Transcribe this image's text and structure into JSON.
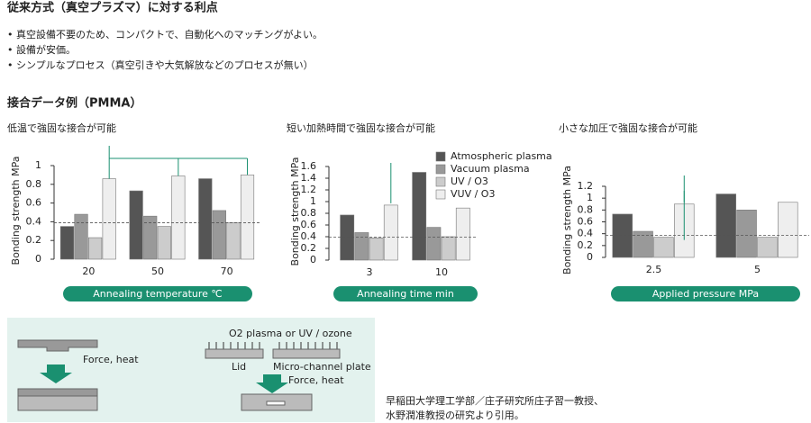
{
  "header": {
    "title": "従来方式（真空プラズマ）に対する利点"
  },
  "bullets": [
    "真空設備不要のため、コンパクトで、自動化へのマッチングがよい。",
    "設備が安価。",
    "シンプルなプロセス（真空引きや大気解放などのプロセスが無い）"
  ],
  "section_title": "接合データ例（PMMA）",
  "chart_data": [
    {
      "type": "bar",
      "title": "低温で強固な接合が可能",
      "y_label": "Bonding strength MPa",
      "x_label": "Annealing temperature ℃",
      "categories": [
        "20",
        "50",
        "70"
      ],
      "series": [
        {
          "name": "Atmospheric plasma",
          "color": "#555555",
          "values": [
            0.35,
            0.73,
            0.86
          ]
        },
        {
          "name": "Vacuum plasma",
          "color": "#999999",
          "values": [
            0.48,
            0.46,
            0.52
          ]
        },
        {
          "name": "UV / O3",
          "color": "#cccccc",
          "values": [
            0.23,
            0.35,
            0.39
          ]
        },
        {
          "name": "VUV / O3",
          "color": "#eeeeee",
          "values": [
            0.86,
            0.89,
            0.9
          ]
        }
      ],
      "ylim": [
        0,
        1
      ],
      "yticks": [
        0,
        0.2,
        0.4,
        0.6,
        0.8,
        1
      ],
      "reference_line": 0.39
    },
    {
      "type": "bar",
      "title": "短い加熱時間で強固な接合が可能",
      "y_label": "Bonding strength MPa",
      "x_label": "Annealing time min",
      "categories": [
        "3",
        "10"
      ],
      "series": [
        {
          "name": "Atmospheric plasma",
          "color": "#555555",
          "values": [
            0.77,
            1.5
          ]
        },
        {
          "name": "Vacuum plasma",
          "color": "#999999",
          "values": [
            0.47,
            0.56
          ]
        },
        {
          "name": "UV / O3",
          "color": "#cccccc",
          "values": [
            0.38,
            0.4
          ]
        },
        {
          "name": "VUV / O3",
          "color": "#eeeeee",
          "values": [
            0.94,
            0.89
          ]
        }
      ],
      "ylim": [
        0,
        1.6
      ],
      "yticks": [
        0,
        0.2,
        0.4,
        0.6,
        0.8,
        1,
        1.2,
        1.4,
        1.6
      ],
      "reference_line": 0.39,
      "legend": "upper right"
    },
    {
      "type": "bar",
      "title": "小さな加圧で強固な接合が可能",
      "y_label": "Bonding strength MPa",
      "x_label": "Applied pressure MPa",
      "categories": [
        "2.5",
        "5"
      ],
      "series": [
        {
          "name": "Atmospheric plasma",
          "color": "#555555",
          "values": [
            0.73,
            1.07
          ]
        },
        {
          "name": "Vacuum plasma",
          "color": "#999999",
          "values": [
            0.44,
            0.8
          ]
        },
        {
          "name": "UV / O3",
          "color": "#cccccc",
          "values": [
            0.34,
            0.34
          ]
        },
        {
          "name": "VUV / O3",
          "color": "#eeeeee",
          "values": [
            0.9,
            0.93
          ]
        }
      ],
      "ylim": [
        0,
        1.2
      ],
      "yticks": [
        0,
        0.2,
        0.4,
        0.6,
        0.8,
        1,
        1.2
      ],
      "reference_line": 0.37
    }
  ],
  "diagram": {
    "left_label": "Force, heat",
    "plasma_label": "O2 plasma or UV / ozone",
    "lid_label": "Lid",
    "plate_label": "Micro-channel plate",
    "right_label": "Force, heat"
  },
  "citation": [
    "早稲田大学理工学部／庄子研究所庄子習一教授、",
    "水野潤准教授の研究より引用。"
  ]
}
